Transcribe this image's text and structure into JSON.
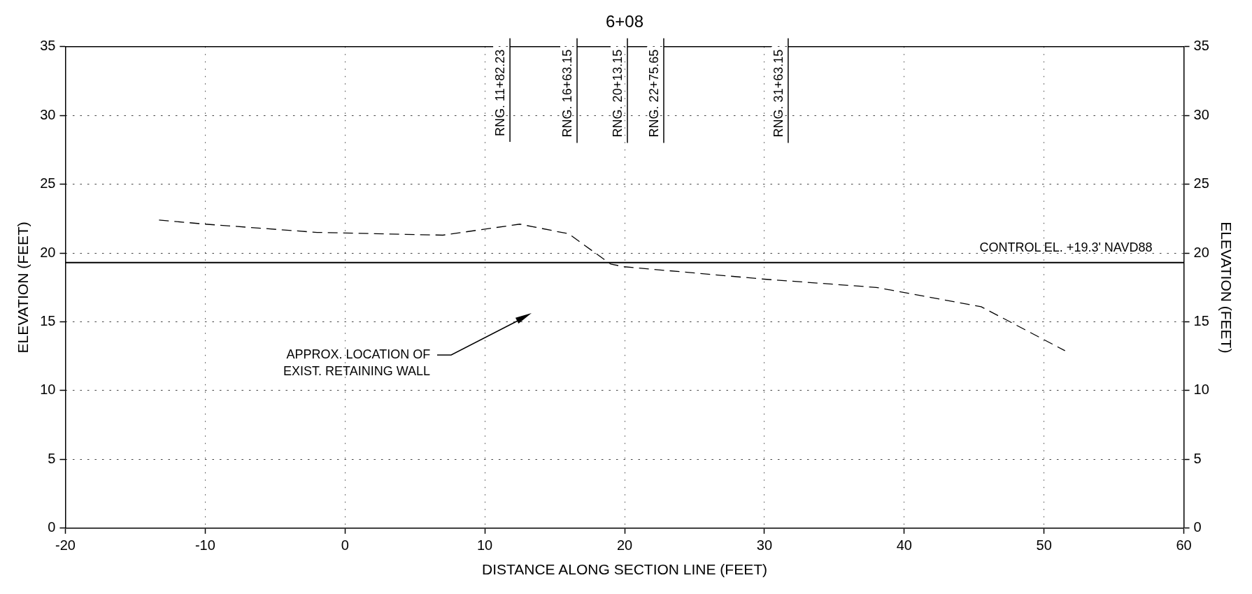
{
  "chart_data": {
    "type": "line",
    "title": "6+08",
    "xlabel": "DISTANCE ALONG SECTION LINE (FEET)",
    "ylabel": "ELEVATION (FEET)",
    "y2label": "ELEVATION (FEET)",
    "series": [
      {
        "color": "#000000",
        "line_style": "dashed",
        "marker": "none",
        "x": [
          -13.3,
          -10,
          -2,
          7,
          12.5,
          16,
          19,
          20,
          30,
          38,
          45.5,
          51.5
        ],
        "values": [
          22.4,
          22.1,
          21.5,
          21.3,
          22.1,
          21.4,
          19.2,
          19.0,
          18.1,
          17.5,
          16.1,
          12.9
        ]
      }
    ],
    "xlim": [
      -20,
      60
    ],
    "xticks": [
      -20,
      -10,
      0,
      10,
      20,
      30,
      40,
      50,
      60
    ],
    "ylim": [
      0,
      35
    ],
    "yticks": [
      0,
      5,
      10,
      15,
      20,
      25,
      30,
      35
    ],
    "y2lim": [
      0,
      35
    ],
    "y2ticks": [
      0,
      5,
      10,
      15,
      20,
      25,
      30,
      35
    ],
    "grid": true,
    "ref_lines": [
      {
        "axis": "y",
        "value": 19.3,
        "label": "CONTROL EL. +19.3' NAVD88",
        "color": "#000000",
        "line_style": "solid"
      },
      {
        "axis": "x",
        "value": 11.8,
        "label": "RNG. 11+82.23",
        "color": "#000000"
      },
      {
        "axis": "x",
        "value": 16.6,
        "label": "RNG. 16+63.15",
        "color": "#000000"
      },
      {
        "axis": "x",
        "value": 20.2,
        "label": "RNG. 20+13.15",
        "color": "#000000"
      },
      {
        "axis": "x",
        "value": 22.8,
        "label": "RNG. 22+75.65",
        "color": "#000000"
      },
      {
        "axis": "x",
        "value": 31.7,
        "label": "RNG. 31+63.15",
        "color": "#000000"
      }
    ],
    "annotations": [
      "APPROX. LOCATION OF\nEXIST. RETAINING WALL"
    ]
  }
}
